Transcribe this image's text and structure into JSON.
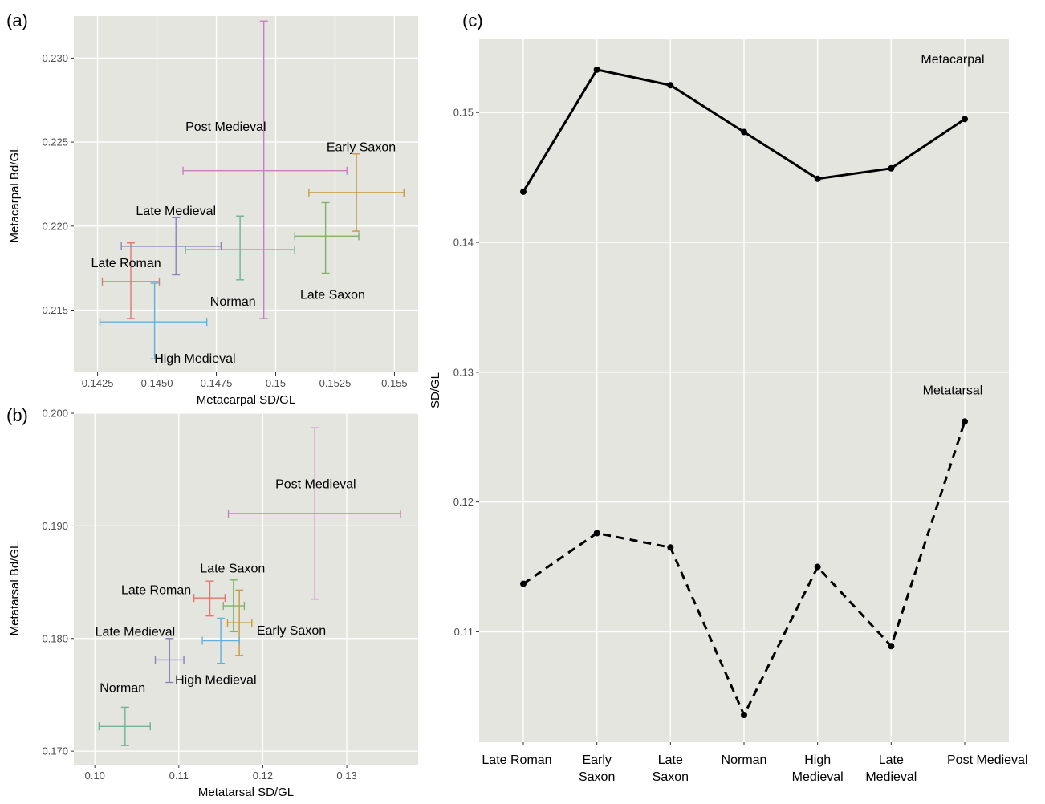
{
  "colors": {
    "Late Roman": "#e0776f",
    "Early Saxon": "#c79a3c",
    "Late Saxon": "#7fb36a",
    "Norman": "#6fb393",
    "High Medieval": "#66aedc",
    "Late Medieval": "#8c82be",
    "Post Medieval": "#c77fc2"
  },
  "chart_data": [
    {
      "id": "a",
      "panel_tag": "(a)",
      "type": "scatter",
      "xlabel": "Metacarpal SD/GL",
      "ylabel": "Metacarpal Bd/GL",
      "xlim": [
        0.1415,
        0.156
      ],
      "ylim": [
        0.2113,
        0.2325
      ],
      "xticks": [
        0.1425,
        0.145,
        0.1475,
        0.15,
        0.1525,
        0.155
      ],
      "xtick_labels": [
        "0.1425",
        "0.1450",
        "0.1475",
        "0.15",
        "0.1525",
        "0.155"
      ],
      "yticks": [
        0.215,
        0.22,
        0.225,
        0.23
      ],
      "ytick_labels": [
        "0.215",
        "0.220",
        "0.225",
        "0.230"
      ],
      "points": [
        {
          "label": "Late Roman",
          "x": 0.1439,
          "xlo": 0.1427,
          "xhi": 0.1451,
          "y": 0.2167,
          "ylo": 0.2145,
          "yhi": 0.219,
          "lx": 0.1437,
          "ly": 0.2178
        },
        {
          "label": "High Medieval",
          "x": 0.1449,
          "xlo": 0.1426,
          "xhi": 0.1471,
          "y": 0.2143,
          "ylo": 0.2121,
          "yhi": 0.2166,
          "lx": 0.1466,
          "ly": 0.2121
        },
        {
          "label": "Late Medieval",
          "x": 0.1458,
          "xlo": 0.1435,
          "xhi": 0.1477,
          "y": 0.2188,
          "ylo": 0.2171,
          "yhi": 0.2205,
          "lx": 0.1458,
          "ly": 0.2209
        },
        {
          "label": "Norman",
          "x": 0.1485,
          "xlo": 0.1462,
          "xhi": 0.1508,
          "y": 0.2186,
          "ylo": 0.2168,
          "yhi": 0.2206,
          "lx": 0.1482,
          "ly": 0.2155
        },
        {
          "label": "Post Medieval",
          "x": 0.1495,
          "xlo": 0.1461,
          "xhi": 0.153,
          "y": 0.2233,
          "ylo": 0.2145,
          "yhi": 0.2322,
          "lx": 0.1479,
          "ly": 0.2259
        },
        {
          "label": "Late Saxon",
          "x": 0.1521,
          "xlo": 0.1508,
          "xhi": 0.1535,
          "y": 0.2194,
          "ylo": 0.2172,
          "yhi": 0.2214,
          "lx": 0.1524,
          "ly": 0.2159
        },
        {
          "label": "Early Saxon",
          "x": 0.1534,
          "xlo": 0.1514,
          "xhi": 0.1554,
          "y": 0.222,
          "ylo": 0.2197,
          "yhi": 0.2243,
          "lx": 0.1536,
          "ly": 0.2247
        }
      ]
    },
    {
      "id": "b",
      "panel_tag": "(b)",
      "type": "scatter",
      "xlabel": "Metatarsal SD/GL",
      "ylabel": "Metatarsal Bd/GL",
      "xlim": [
        0.0975,
        0.1385
      ],
      "ylim": [
        0.1688,
        0.2
      ],
      "xticks": [
        0.1,
        0.11,
        0.12,
        0.13
      ],
      "xtick_labels": [
        "0.10",
        "0.11",
        "0.12",
        "0.13"
      ],
      "yticks": [
        0.17,
        0.18,
        0.19,
        0.2
      ],
      "ytick_labels": [
        "0.170",
        "0.180",
        "0.190",
        "0.200"
      ],
      "points": [
        {
          "label": "Late Roman",
          "x": 0.1137,
          "xlo": 0.1118,
          "xhi": 0.1155,
          "y": 0.1836,
          "ylo": 0.182,
          "yhi": 0.1851,
          "lx": 0.1073,
          "ly": 0.1843
        },
        {
          "label": "Late Saxon",
          "x": 0.1165,
          "xlo": 0.1153,
          "xhi": 0.1178,
          "y": 0.1829,
          "ylo": 0.1806,
          "yhi": 0.1852,
          "lx": 0.1164,
          "ly": 0.1862
        },
        {
          "label": "Early Saxon",
          "x": 0.1172,
          "xlo": 0.1158,
          "xhi": 0.1187,
          "y": 0.1814,
          "ylo": 0.1785,
          "yhi": 0.1843,
          "lx": 0.1234,
          "ly": 0.1807
        },
        {
          "label": "High Medieval",
          "x": 0.115,
          "xlo": 0.1128,
          "xhi": 0.1172,
          "y": 0.1798,
          "ylo": 0.1778,
          "yhi": 0.1818,
          "lx": 0.1144,
          "ly": 0.1763
        },
        {
          "label": "Late Medieval",
          "x": 0.1089,
          "xlo": 0.1072,
          "xhi": 0.1106,
          "y": 0.1781,
          "ylo": 0.1761,
          "yhi": 0.18,
          "lx": 0.1048,
          "ly": 0.1806
        },
        {
          "label": "Norman",
          "x": 0.1036,
          "xlo": 0.1005,
          "xhi": 0.1066,
          "y": 0.1722,
          "ylo": 0.1705,
          "yhi": 0.1739,
          "lx": 0.1033,
          "ly": 0.1756
        },
        {
          "label": "Post Medieval",
          "x": 0.1262,
          "xlo": 0.1159,
          "xhi": 0.1364,
          "y": 0.1911,
          "ylo": 0.1835,
          "yhi": 0.1987,
          "lx": 0.1263,
          "ly": 0.1937
        }
      ]
    },
    {
      "id": "c",
      "panel_tag": "(c)",
      "type": "line",
      "ylabel": "SD/GL",
      "xlabel": "",
      "categories": [
        "Late Roman",
        "Early Saxon",
        "Late Saxon",
        "Norman",
        "High Medieval",
        "Late Medieval",
        "Post Medieval"
      ],
      "category_labels": [
        [
          "Late Roman"
        ],
        [
          "Early",
          "Saxon"
        ],
        [
          "Late",
          "Saxon"
        ],
        [
          "Norman"
        ],
        [
          "High",
          "Medieval"
        ],
        [
          "Late",
          "Medieval"
        ],
        [
          "Post Medieval"
        ]
      ],
      "ylim": [
        0.1015,
        0.1557
      ],
      "yticks": [
        0.11,
        0.12,
        0.13,
        0.14,
        0.15
      ],
      "ytick_labels": [
        "0.11",
        "0.12",
        "0.13",
        "0.14",
        "0.15"
      ],
      "series": [
        {
          "name": "Metacarpal",
          "dash": "solid",
          "values": [
            0.1439,
            0.1533,
            0.1521,
            0.1485,
            0.1449,
            0.1457,
            0.1495
          ],
          "label_y": 0.1541
        },
        {
          "name": "Metatarsal",
          "dash": "dashed",
          "values": [
            0.1137,
            0.1176,
            0.1165,
            0.1036,
            0.115,
            0.1089,
            0.1262
          ],
          "label_y": 0.1286
        }
      ]
    }
  ]
}
